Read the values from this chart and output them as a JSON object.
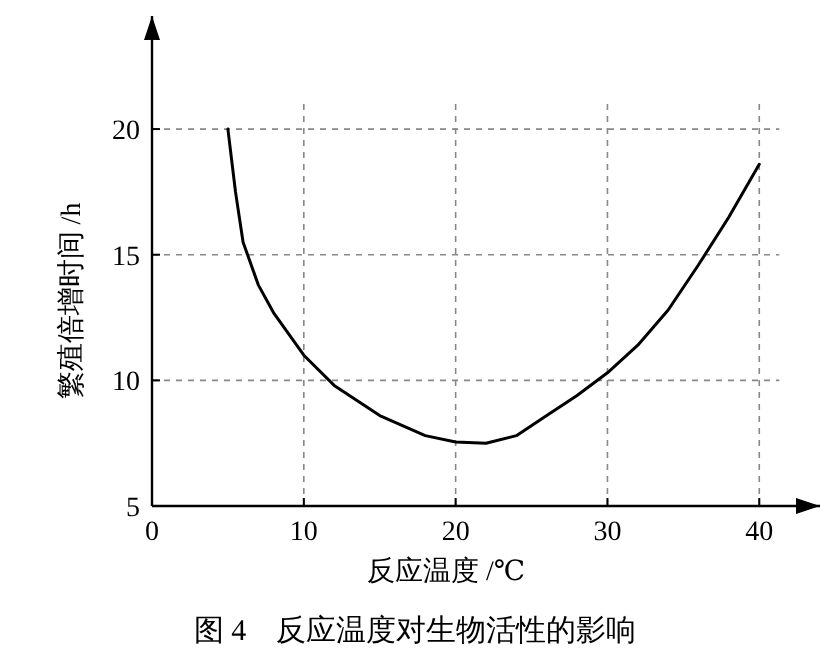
{
  "chart_data": {
    "type": "line",
    "title": "图 4　反应温度对生物活性的影响",
    "xlabel": "反应温度 /℃",
    "ylabel": "繁殖倍增时间 /h",
    "xlim": [
      0,
      44
    ],
    "ylim": [
      5,
      24.5
    ],
    "xticks": [
      0,
      10,
      20,
      30,
      40
    ],
    "yticks": [
      5,
      10,
      15,
      20
    ],
    "grid": true,
    "marker": "none",
    "line_style": "solid",
    "series": [
      {
        "color": "#000000",
        "x": [
          5,
          5.5,
          6,
          7,
          8,
          10,
          12,
          15,
          18,
          20,
          22,
          24,
          26,
          28,
          30,
          32,
          34,
          36,
          38,
          40
        ],
        "values": [
          20,
          17.5,
          15.5,
          13.8,
          12.7,
          11,
          9.8,
          8.6,
          7.8,
          7.55,
          7.5,
          7.8,
          8.6,
          9.4,
          10.3,
          11.4,
          12.8,
          14.6,
          16.5,
          18.6
        ]
      }
    ]
  }
}
